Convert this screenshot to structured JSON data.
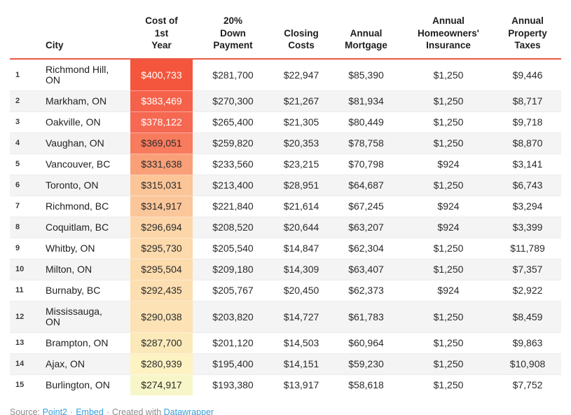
{
  "chart_data": {
    "type": "table",
    "heatmap": {
      "column": "cost_first_year",
      "scale_high": "#f4563d",
      "scale_low": "#f7f6c9",
      "header_rule_color": "#e85b45",
      "stripe_color": "#f4f4f4"
    },
    "columns": [
      {
        "key": "rank",
        "label": ""
      },
      {
        "key": "city",
        "label": "City"
      },
      {
        "key": "cost_first_year",
        "label": "Cost of\n1st\nYear"
      },
      {
        "key": "down_payment",
        "label": "20%\nDown\nPayment"
      },
      {
        "key": "closing_costs",
        "label": "Closing\nCosts"
      },
      {
        "key": "annual_mortgage",
        "label": "Annual\nMortgage"
      },
      {
        "key": "annual_insurance",
        "label": "Annual\nHomeowners'\nInsurance"
      },
      {
        "key": "property_taxes",
        "label": "Annual\nProperty\nTaxes"
      }
    ],
    "rows": [
      {
        "rank": "1",
        "city": "Richmond Hill, ON",
        "cost_first_year": "$400,733",
        "down_payment": "$281,700",
        "closing_costs": "$22,947",
        "annual_mortgage": "$85,390",
        "annual_insurance": "$1,250",
        "property_taxes": "$9,446",
        "heat_bg": "#f4563d",
        "heat_text": "#ffffff"
      },
      {
        "rank": "2",
        "city": "Markham, ON",
        "cost_first_year": "$383,469",
        "down_payment": "$270,300",
        "closing_costs": "$21,267",
        "annual_mortgage": "$81,934",
        "annual_insurance": "$1,250",
        "property_taxes": "$8,717",
        "heat_bg": "#f5614a",
        "heat_text": "#ffffff"
      },
      {
        "rank": "3",
        "city": "Oakville, ON",
        "cost_first_year": "$378,122",
        "down_payment": "$265,400",
        "closing_costs": "$21,305",
        "annual_mortgage": "$80,449",
        "annual_insurance": "$1,250",
        "property_taxes": "$9,718",
        "heat_bg": "#f66852",
        "heat_text": "#ffffff"
      },
      {
        "rank": "4",
        "city": "Vaughan, ON",
        "cost_first_year": "$369,051",
        "down_payment": "$259,820",
        "closing_costs": "$20,353",
        "annual_mortgage": "$78,758",
        "annual_insurance": "$1,250",
        "property_taxes": "$8,870",
        "heat_bg": "#f87b5e",
        "heat_text": "#2b2b2b"
      },
      {
        "rank": "5",
        "city": "Vancouver, BC",
        "cost_first_year": "$331,638",
        "down_payment": "$233,560",
        "closing_costs": "$23,215",
        "annual_mortgage": "$70,798",
        "annual_insurance": "$924",
        "property_taxes": "$3,141",
        "heat_bg": "#f9a078",
        "heat_text": "#2b2b2b"
      },
      {
        "rank": "6",
        "city": "Toronto, ON",
        "cost_first_year": "$315,031",
        "down_payment": "$213,400",
        "closing_costs": "$28,951",
        "annual_mortgage": "$64,687",
        "annual_insurance": "$1,250",
        "property_taxes": "$6,743",
        "heat_bg": "#fbc598",
        "heat_text": "#2b2b2b"
      },
      {
        "rank": "7",
        "city": "Richmond, BC",
        "cost_first_year": "$314,917",
        "down_payment": "$221,840",
        "closing_costs": "$21,614",
        "annual_mortgage": "$67,245",
        "annual_insurance": "$924",
        "property_taxes": "$3,294",
        "heat_bg": "#fbc69a",
        "heat_text": "#2b2b2b"
      },
      {
        "rank": "8",
        "city": "Coquitlam, BC",
        "cost_first_year": "$296,694",
        "down_payment": "$208,520",
        "closing_costs": "$20,644",
        "annual_mortgage": "$63,207",
        "annual_insurance": "$924",
        "property_taxes": "$3,399",
        "heat_bg": "#fcd6a8",
        "heat_text": "#2b2b2b"
      },
      {
        "rank": "9",
        "city": "Whitby, ON",
        "cost_first_year": "$295,730",
        "down_payment": "$205,540",
        "closing_costs": "$14,847",
        "annual_mortgage": "$62,304",
        "annual_insurance": "$1,250",
        "property_taxes": "$11,789",
        "heat_bg": "#fcdaac",
        "heat_text": "#2b2b2b"
      },
      {
        "rank": "10",
        "city": "Milton, ON",
        "cost_first_year": "$295,504",
        "down_payment": "$209,180",
        "closing_costs": "$14,309",
        "annual_mortgage": "$63,407",
        "annual_insurance": "$1,250",
        "property_taxes": "$7,357",
        "heat_bg": "#fcdbad",
        "heat_text": "#2b2b2b"
      },
      {
        "rank": "11",
        "city": "Burnaby, BC",
        "cost_first_year": "$292,435",
        "down_payment": "$205,767",
        "closing_costs": "$20,450",
        "annual_mortgage": "$62,373",
        "annual_insurance": "$924",
        "property_taxes": "$2,922",
        "heat_bg": "#fcdeb0",
        "heat_text": "#2b2b2b"
      },
      {
        "rank": "12",
        "city": "Mississauga, ON",
        "cost_first_year": "$290,038",
        "down_payment": "$203,820",
        "closing_costs": "$14,727",
        "annual_mortgage": "$61,783",
        "annual_insurance": "$1,250",
        "property_taxes": "$8,459",
        "heat_bg": "#fce2b5",
        "heat_text": "#2b2b2b"
      },
      {
        "rank": "13",
        "city": "Brampton, ON",
        "cost_first_year": "$287,700",
        "down_payment": "$201,120",
        "closing_costs": "$14,503",
        "annual_mortgage": "$60,964",
        "annual_insurance": "$1,250",
        "property_taxes": "$9,863",
        "heat_bg": "#fbe9ba",
        "heat_text": "#2b2b2b"
      },
      {
        "rank": "14",
        "city": "Ajax, ON",
        "cost_first_year": "$280,939",
        "down_payment": "$195,400",
        "closing_costs": "$14,151",
        "annual_mortgage": "$59,230",
        "annual_insurance": "$1,250",
        "property_taxes": "$10,908",
        "heat_bg": "#fdf2c2",
        "heat_text": "#2b2b2b"
      },
      {
        "rank": "15",
        "city": "Burlington, ON",
        "cost_first_year": "$274,917",
        "down_payment": "$193,380",
        "closing_costs": "$13,917",
        "annual_mortgage": "$58,618",
        "annual_insurance": "$1,250",
        "property_taxes": "$7,752",
        "heat_bg": "#f7f6c9",
        "heat_text": "#2b2b2b"
      }
    ]
  },
  "footer": {
    "prefix": "Source: ",
    "separator": "·",
    "created_with": "Created with ",
    "links": [
      {
        "label": "Point2"
      },
      {
        "label": "Embed"
      },
      {
        "label": "Datawrapper"
      }
    ],
    "link_color": "#35a0d9"
  }
}
